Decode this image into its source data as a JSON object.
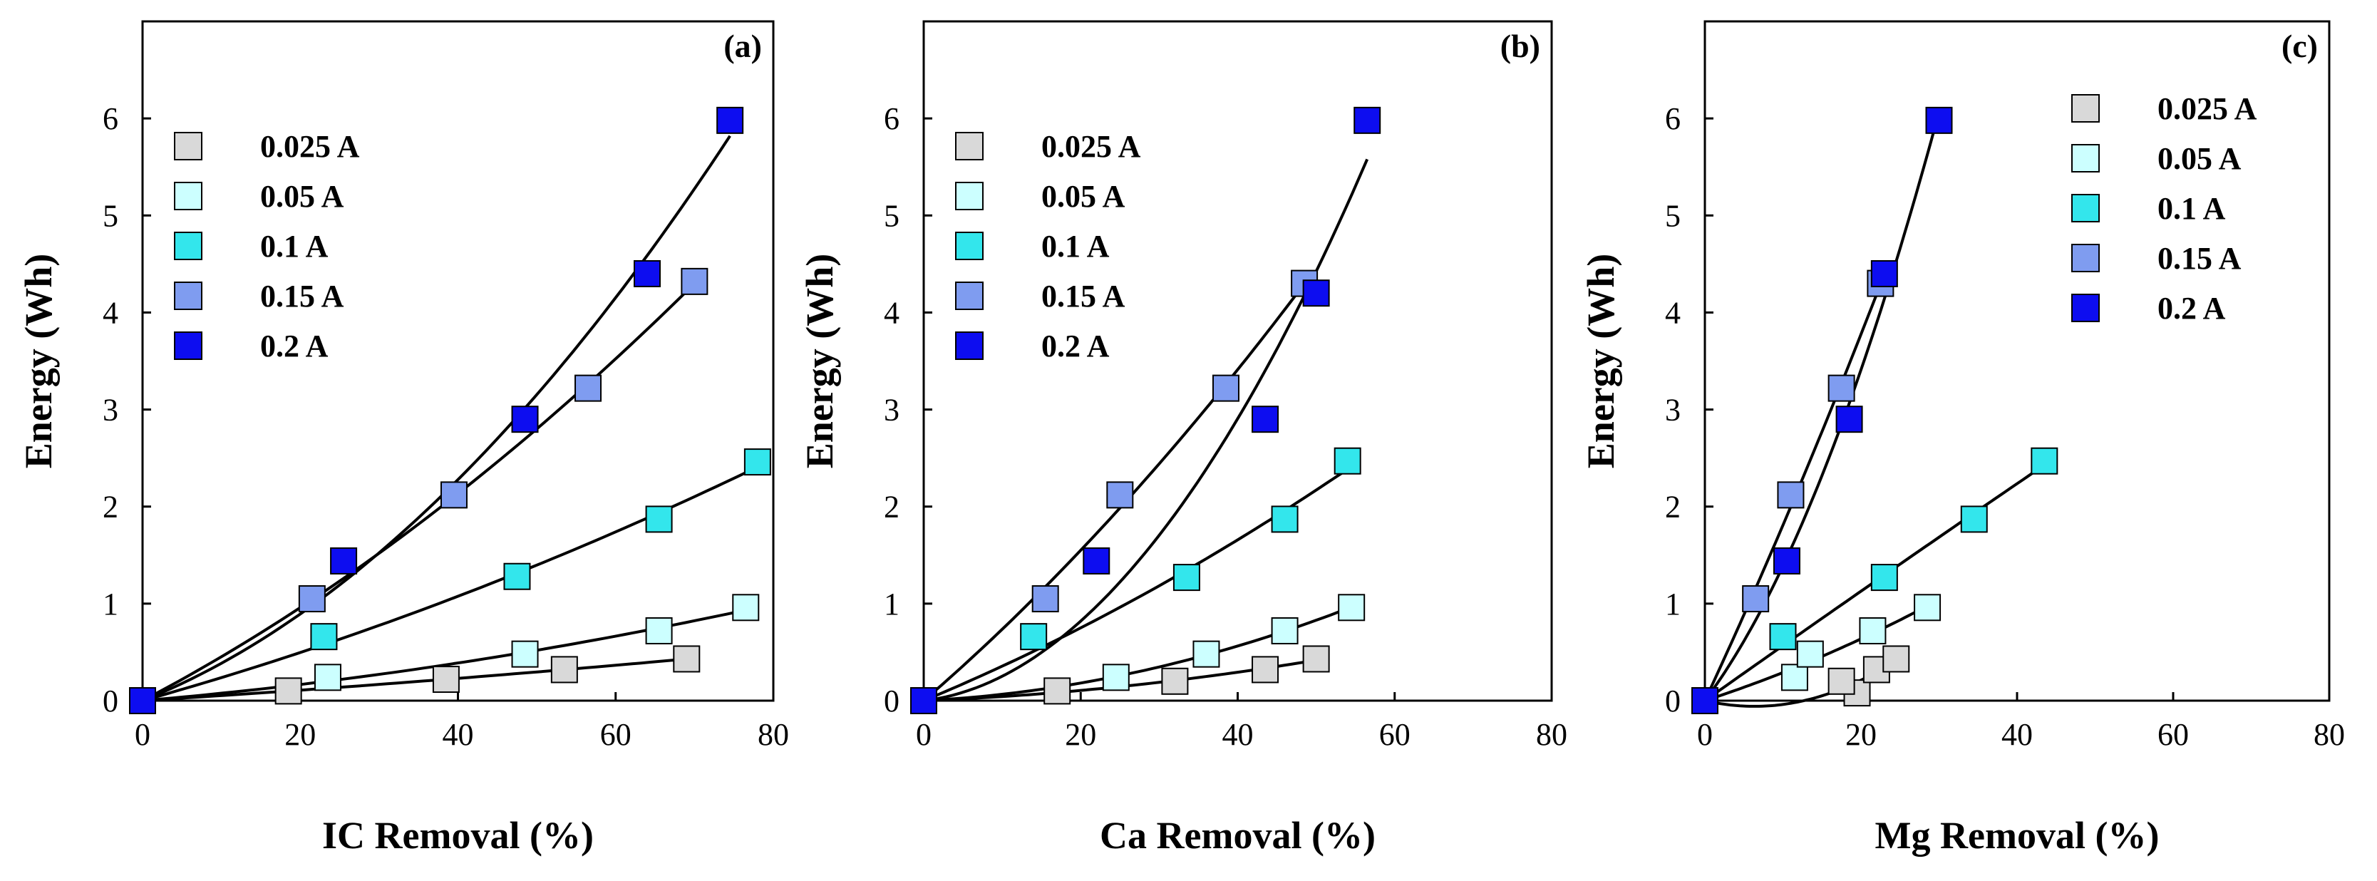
{
  "chart_data": [
    {
      "type": "scatter",
      "panel_label": "(a)",
      "xlabel": "IC Removal (%)",
      "ylabel": "Energy (Wh)",
      "xlim": [
        0,
        80
      ],
      "ylim": [
        0,
        7
      ],
      "xticks": [
        "0",
        "20",
        "40",
        "60",
        "80"
      ],
      "yticks": [
        "0",
        "1",
        "2",
        "3",
        "4",
        "5",
        "6"
      ],
      "legend_position": "top-left",
      "series": [
        {
          "name": "0.025 A",
          "color": "#d9d9d9",
          "x": [
            0,
            18.5,
            38.5,
            53.5,
            69
          ],
          "y": [
            0,
            0.1,
            0.22,
            0.32,
            0.43
          ]
        },
        {
          "name": "0.05 A",
          "color": "#ccffff",
          "x": [
            0,
            23.5,
            48.5,
            65.5,
            76.5
          ],
          "y": [
            0,
            0.24,
            0.48,
            0.72,
            0.96
          ]
        },
        {
          "name": "0.1 A",
          "color": "#33e6ec",
          "x": [
            0,
            23,
            47.5,
            65.5,
            78
          ],
          "y": [
            0,
            0.66,
            1.28,
            1.87,
            2.46
          ]
        },
        {
          "name": "0.15 A",
          "color": "#7f9cf0",
          "x": [
            0,
            21.5,
            39.5,
            56.5,
            70
          ],
          "y": [
            0,
            1.05,
            2.12,
            3.22,
            4.32
          ]
        },
        {
          "name": "0.2 A",
          "color": "#0d0df0",
          "x": [
            0,
            25.5,
            48.5,
            64,
            74.5
          ],
          "y": [
            0,
            1.44,
            2.9,
            4.4,
            5.98
          ]
        }
      ]
    },
    {
      "type": "scatter",
      "panel_label": "(b)",
      "xlabel": "Ca Removal (%)",
      "ylabel": "Energy (Wh)",
      "xlim": [
        0,
        80
      ],
      "ylim": [
        0,
        7
      ],
      "xticks": [
        "0",
        "20",
        "40",
        "60",
        "80"
      ],
      "yticks": [
        "0",
        "1",
        "2",
        "3",
        "4",
        "5",
        "6"
      ],
      "legend_position": "top-left",
      "series": [
        {
          "name": "0.025 A",
          "color": "#d9d9d9",
          "x": [
            0,
            17,
            32,
            43.5,
            50
          ],
          "y": [
            0,
            0.1,
            0.2,
            0.32,
            0.43
          ]
        },
        {
          "name": "0.05 A",
          "color": "#ccffff",
          "x": [
            0,
            24.5,
            36,
            46,
            54.5
          ],
          "y": [
            0,
            0.24,
            0.48,
            0.72,
            0.96
          ]
        },
        {
          "name": "0.1 A",
          "color": "#33e6ec",
          "x": [
            0,
            14,
            33.5,
            46,
            54
          ],
          "y": [
            0,
            0.66,
            1.27,
            1.87,
            2.47
          ]
        },
        {
          "name": "0.15 A",
          "color": "#7f9cf0",
          "x": [
            0,
            15.5,
            25,
            38.5,
            48.5
          ],
          "y": [
            0,
            1.05,
            2.12,
            3.22,
            4.3
          ]
        },
        {
          "name": "0.2 A",
          "color": "#0d0df0",
          "x": [
            0,
            22,
            43.5,
            50,
            56.5
          ],
          "y": [
            0,
            1.44,
            2.9,
            4.2,
            5.98
          ]
        }
      ]
    },
    {
      "type": "scatter",
      "panel_label": "(c)",
      "xlabel": "Mg Removal (%)",
      "ylabel": "Energy (Wh)",
      "xlim": [
        0,
        80
      ],
      "ylim": [
        0,
        7
      ],
      "xticks": [
        "0",
        "20",
        "40",
        "60",
        "80"
      ],
      "yticks": [
        "0",
        "1",
        "2",
        "3",
        "4",
        "5",
        "6"
      ],
      "legend_position": "top-right",
      "series": [
        {
          "name": "0.025 A",
          "color": "#d9d9d9",
          "x": [
            0,
            19.5,
            17.5,
            22,
            24.5
          ],
          "y": [
            0,
            0.08,
            0.2,
            0.32,
            0.43
          ]
        },
        {
          "name": "0.05 A",
          "color": "#ccffff",
          "x": [
            0,
            11.5,
            13.5,
            21.5,
            28.5
          ],
          "y": [
            0,
            0.24,
            0.48,
            0.72,
            0.96
          ]
        },
        {
          "name": "0.1 A",
          "color": "#33e6ec",
          "x": [
            0,
            10,
            23,
            34.5,
            43.5
          ],
          "y": [
            0,
            0.66,
            1.27,
            1.87,
            2.47
          ]
        },
        {
          "name": "0.15 A",
          "color": "#7f9cf0",
          "x": [
            0,
            6.5,
            11,
            17.5,
            22.5
          ],
          "y": [
            0,
            1.05,
            2.12,
            3.22,
            4.3
          ]
        },
        {
          "name": "0.2 A",
          "color": "#0d0df0",
          "x": [
            0,
            10.5,
            18.5,
            23,
            30
          ],
          "y": [
            0,
            1.44,
            2.9,
            4.4,
            5.98
          ]
        }
      ]
    }
  ]
}
